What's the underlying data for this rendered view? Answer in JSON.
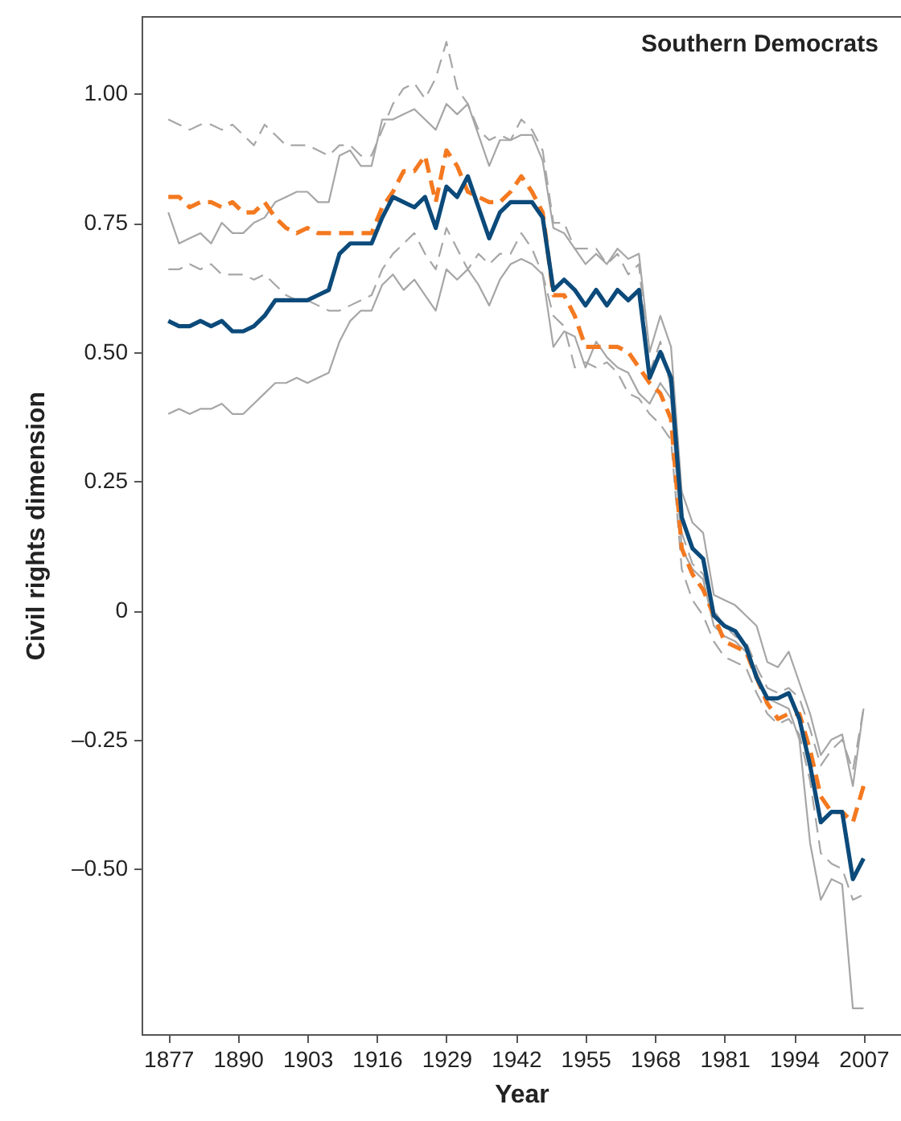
{
  "chart_data": {
    "type": "line",
    "title": "Southern Democrats",
    "xlabel": "Year",
    "ylabel": "Civil rights dimension",
    "x": [
      1877,
      1879,
      1881,
      1883,
      1885,
      1887,
      1889,
      1891,
      1893,
      1895,
      1897,
      1899,
      1901,
      1903,
      1905,
      1907,
      1909,
      1911,
      1913,
      1915,
      1917,
      1919,
      1921,
      1923,
      1925,
      1927,
      1929,
      1931,
      1933,
      1935,
      1937,
      1939,
      1941,
      1943,
      1945,
      1947,
      1949,
      1951,
      1953,
      1955,
      1957,
      1959,
      1961,
      1963,
      1965,
      1967,
      1969,
      1971,
      1973,
      1975,
      1977,
      1979,
      1981,
      1983,
      1985,
      1987,
      1989,
      1991,
      1993,
      1995,
      1997,
      1999,
      2001,
      2003,
      2005,
      2007
    ],
    "series": [
      {
        "color": "#a6a6a6",
        "line_style": "solid",
        "values": [
          0.77,
          0.71,
          0.72,
          0.73,
          0.71,
          0.75,
          0.73,
          0.73,
          0.75,
          0.76,
          0.79,
          0.8,
          0.81,
          0.81,
          0.79,
          0.79,
          0.88,
          0.89,
          0.86,
          0.86,
          0.95,
          0.95,
          0.96,
          0.97,
          0.95,
          0.93,
          0.98,
          0.96,
          0.98,
          0.92,
          0.86,
          0.91,
          0.91,
          0.92,
          0.92,
          0.87,
          0.74,
          0.73,
          0.7,
          0.67,
          0.69,
          0.67,
          0.7,
          0.68,
          0.69,
          0.5,
          0.57,
          0.51,
          0.23,
          0.17,
          0.15,
          0.03,
          0.02,
          0.01,
          -0.01,
          -0.03,
          -0.1,
          -0.11,
          -0.08,
          -0.14,
          -0.2,
          -0.28,
          -0.25,
          -0.24,
          -0.34,
          -0.19
        ]
      },
      {
        "color": "#a6a6a6",
        "line_style": "solid",
        "values": [
          0.38,
          0.39,
          0.38,
          0.39,
          0.39,
          0.4,
          0.38,
          0.38,
          0.4,
          0.42,
          0.44,
          0.44,
          0.45,
          0.44,
          0.45,
          0.46,
          0.52,
          0.56,
          0.58,
          0.58,
          0.63,
          0.65,
          0.62,
          0.64,
          0.61,
          0.58,
          0.66,
          0.64,
          0.66,
          0.63,
          0.59,
          0.64,
          0.67,
          0.68,
          0.67,
          0.65,
          0.51,
          0.54,
          0.53,
          0.47,
          0.52,
          0.49,
          0.47,
          0.46,
          0.42,
          0.4,
          0.44,
          0.41,
          0.12,
          0.08,
          0.06,
          -0.03,
          -0.05,
          -0.06,
          -0.08,
          -0.12,
          -0.17,
          -0.18,
          -0.19,
          -0.25,
          -0.45,
          -0.56,
          -0.52,
          -0.53,
          -0.77,
          -0.77
        ]
      },
      {
        "color": "#a6a6a6",
        "line_style": "dashed",
        "values": [
          0.95,
          0.94,
          0.93,
          0.94,
          0.94,
          0.93,
          0.94,
          0.92,
          0.9,
          0.94,
          0.92,
          0.9,
          0.9,
          0.9,
          0.89,
          0.88,
          0.9,
          0.9,
          0.88,
          0.88,
          0.93,
          0.98,
          1.01,
          1.02,
          0.99,
          1.03,
          1.1,
          1.01,
          0.98,
          0.93,
          0.91,
          0.92,
          0.91,
          0.95,
          0.93,
          0.89,
          0.75,
          0.75,
          0.7,
          0.7,
          0.7,
          0.67,
          0.69,
          0.65,
          0.67,
          0.46,
          0.52,
          0.43,
          0.15,
          0.09,
          0.07,
          0.0,
          -0.03,
          -0.05,
          -0.06,
          -0.11,
          -0.15,
          -0.16,
          -0.15,
          -0.17,
          -0.23,
          -0.3,
          -0.27,
          -0.25,
          -0.31,
          -0.19
        ]
      },
      {
        "color": "#a6a6a6",
        "line_style": "dashed",
        "values": [
          0.66,
          0.66,
          0.67,
          0.66,
          0.67,
          0.65,
          0.65,
          0.65,
          0.64,
          0.65,
          0.63,
          0.61,
          0.6,
          0.6,
          0.59,
          0.58,
          0.58,
          0.59,
          0.6,
          0.61,
          0.66,
          0.69,
          0.71,
          0.73,
          0.69,
          0.66,
          0.74,
          0.7,
          0.66,
          0.69,
          0.67,
          0.69,
          0.69,
          0.73,
          0.7,
          0.65,
          0.57,
          0.55,
          0.47,
          0.48,
          0.47,
          0.48,
          0.46,
          0.42,
          0.41,
          0.38,
          0.36,
          0.33,
          0.08,
          0.02,
          -0.01,
          -0.06,
          -0.09,
          -0.1,
          -0.11,
          -0.16,
          -0.2,
          -0.22,
          -0.21,
          -0.24,
          -0.33,
          -0.47,
          -0.49,
          -0.5,
          -0.56,
          -0.55
        ]
      },
      {
        "color": "#f47920",
        "line_style": "dashed",
        "values": [
          0.8,
          0.8,
          0.78,
          0.79,
          0.79,
          0.78,
          0.79,
          0.77,
          0.77,
          0.79,
          0.76,
          0.74,
          0.73,
          0.74,
          0.73,
          0.73,
          0.73,
          0.73,
          0.73,
          0.73,
          0.78,
          0.81,
          0.85,
          0.85,
          0.88,
          0.79,
          0.89,
          0.86,
          0.81,
          0.8,
          0.79,
          0.79,
          0.81,
          0.84,
          0.81,
          0.77,
          0.61,
          0.61,
          0.57,
          0.51,
          0.51,
          0.51,
          0.51,
          0.5,
          0.47,
          0.44,
          0.42,
          0.37,
          0.12,
          0.07,
          0.04,
          -0.01,
          -0.06,
          -0.07,
          -0.08,
          -0.13,
          -0.18,
          -0.21,
          -0.2,
          -0.2,
          -0.27,
          -0.36,
          -0.39,
          -0.39,
          -0.41,
          -0.34
        ]
      },
      {
        "color": "#0b4a7a",
        "line_style": "solid",
        "values": [
          0.56,
          0.55,
          0.55,
          0.56,
          0.55,
          0.56,
          0.54,
          0.54,
          0.55,
          0.57,
          0.6,
          0.6,
          0.6,
          0.6,
          0.61,
          0.62,
          0.69,
          0.71,
          0.71,
          0.71,
          0.76,
          0.8,
          0.79,
          0.78,
          0.8,
          0.74,
          0.82,
          0.8,
          0.84,
          0.78,
          0.72,
          0.77,
          0.79,
          0.79,
          0.79,
          0.76,
          0.62,
          0.64,
          0.62,
          0.59,
          0.62,
          0.59,
          0.62,
          0.6,
          0.62,
          0.45,
          0.5,
          0.45,
          0.18,
          0.12,
          0.1,
          -0.01,
          -0.03,
          -0.04,
          -0.07,
          -0.13,
          -0.17,
          -0.17,
          -0.16,
          -0.21,
          -0.3,
          -0.41,
          -0.39,
          -0.39,
          -0.52,
          -0.48
        ]
      }
    ],
    "xlim": [
      1872,
      2014
    ],
    "ylim": [
      -0.82,
      1.15
    ],
    "xticks": [
      1877,
      1890,
      1903,
      1916,
      1929,
      1942,
      1955,
      1968,
      1981,
      1994,
      2007
    ],
    "yticks": [
      {
        "value": 1,
        "label": "1.00"
      },
      {
        "value": 0.75,
        "label": "0.75"
      },
      {
        "value": 0.5,
        "label": "0.50"
      },
      {
        "value": 0.25,
        "label": "0.25"
      },
      0,
      {
        "value": -0.25,
        "label": "–0.25"
      },
      {
        "value": -0.5,
        "label": "–0.50"
      }
    ],
    "grid": false
  }
}
